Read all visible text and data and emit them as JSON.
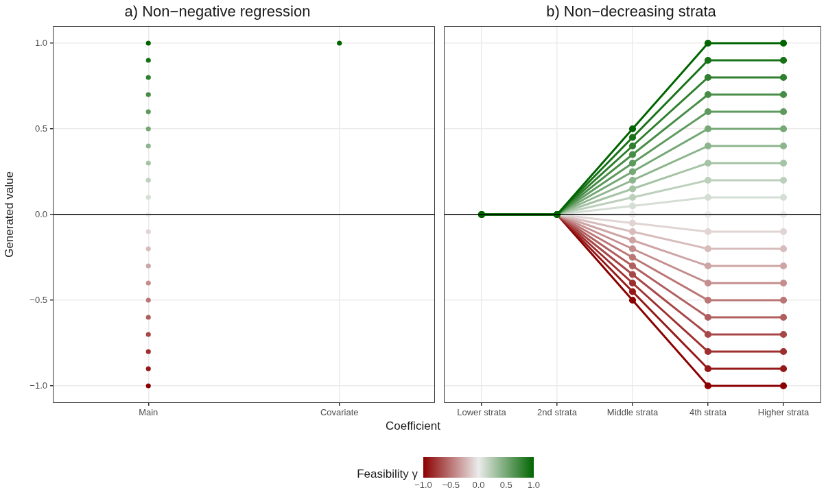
{
  "chart_data": [
    {
      "type": "scatter",
      "title": "a) Non−negative regression",
      "xlabel": "Coefficient",
      "ylabel": "Generated value",
      "categories": [
        "Main",
        "Covariate"
      ],
      "series": [
        {
          "x": [
            "Main",
            "Main",
            "Main",
            "Main",
            "Main",
            "Main",
            "Main",
            "Main",
            "Main",
            "Main",
            "Main",
            "Main",
            "Main",
            "Main",
            "Main",
            "Main",
            "Main",
            "Main",
            "Main",
            "Main",
            "Main",
            "Covariate"
          ],
          "values": [
            -1,
            -0.9,
            -0.8,
            -0.7,
            -0.6,
            -0.5,
            -0.4,
            -0.3,
            -0.2,
            -0.1,
            0,
            0.1,
            0.2,
            0.3,
            0.4,
            0.5,
            0.6,
            0.7,
            0.8,
            0.9,
            1,
            1
          ],
          "cvalues": [
            -1,
            -0.9,
            -0.8,
            -0.7,
            -0.6,
            -0.5,
            -0.4,
            -0.3,
            -0.2,
            -0.1,
            0,
            0.1,
            0.2,
            0.3,
            0.4,
            0.5,
            0.6,
            0.7,
            0.8,
            0.9,
            1,
            1
          ],
          "colors": [
            "#8b0000",
            "#951818",
            "#9e2f2f",
            "#a84747",
            "#b15e5e",
            "#bb7676",
            "#c58d8d",
            "#cea5a5",
            "#d8bcbc",
            "#e1d4d4",
            "#ebebeb",
            "#d4ded4",
            "#bcd0bc",
            "#a5c3a5",
            "#8db58d",
            "#76a876",
            "#5e9a5e",
            "#478d47",
            "#2f7f2f",
            "#187218",
            "#006400",
            "#006400"
          ]
        }
      ],
      "ylim": [
        -1.1,
        1.1
      ],
      "yticks": [
        {
          "value": -1,
          "label": "−1.0"
        },
        {
          "value": -0.5,
          "label": "−0.5"
        },
        {
          "value": 0,
          "label": "0.0"
        },
        {
          "value": 0.5,
          "label": "0.5"
        },
        {
          "value": 1,
          "label": "1.0"
        }
      ],
      "ref_lines": [
        {
          "axis": "y",
          "value": 0,
          "color": "#000000"
        }
      ],
      "grid": true,
      "legend": false,
      "marker": "circle",
      "clabel": "Feasibility γ",
      "clim": [
        -1,
        1
      ],
      "cticks": [
        {
          "value": -1,
          "label": "−1.0"
        },
        {
          "value": -0.5,
          "label": "−0.5"
        },
        {
          "value": 0,
          "label": "0.0"
        },
        {
          "value": 0.5,
          "label": "0.5"
        },
        {
          "value": 1,
          "label": "1.0"
        }
      ]
    },
    {
      "type": "line",
      "title": "b) Non−decreasing strata",
      "categories": [
        "Lower strata",
        "2nd strata",
        "Middle strata",
        "4th strata",
        "Higher strata"
      ],
      "series": [
        {
          "color": "#8b0000",
          "values": [
            0,
            0,
            -0.5,
            -1,
            -1
          ]
        },
        {
          "color": "#951818",
          "values": [
            0,
            0,
            -0.45,
            -0.9,
            -0.9
          ]
        },
        {
          "color": "#9e2f2f",
          "values": [
            0,
            0,
            -0.4,
            -0.8,
            -0.8
          ]
        },
        {
          "color": "#a84747",
          "values": [
            0,
            0,
            -0.35,
            -0.7,
            -0.7
          ]
        },
        {
          "color": "#b15e5e",
          "values": [
            0,
            0,
            -0.3,
            -0.6,
            -0.6
          ]
        },
        {
          "color": "#bb7676",
          "values": [
            0,
            0,
            -0.25,
            -0.5,
            -0.5
          ]
        },
        {
          "color": "#c58d8d",
          "values": [
            0,
            0,
            -0.2,
            -0.4,
            -0.4
          ]
        },
        {
          "color": "#cea5a5",
          "values": [
            0,
            0,
            -0.15,
            -0.3,
            -0.3
          ]
        },
        {
          "color": "#d8bcbc",
          "values": [
            0,
            0,
            -0.1,
            -0.2,
            -0.2
          ]
        },
        {
          "color": "#e1d4d4",
          "values": [
            0,
            0,
            -0.05,
            -0.1,
            -0.1
          ]
        },
        {
          "color": "#ebebeb",
          "values": [
            0,
            0,
            0,
            0,
            0
          ]
        },
        {
          "color": "#d4ded4",
          "values": [
            0,
            0,
            0.05,
            0.1,
            0.1
          ]
        },
        {
          "color": "#bcd0bc",
          "values": [
            0,
            0,
            0.1,
            0.2,
            0.2
          ]
        },
        {
          "color": "#a5c3a5",
          "values": [
            0,
            0,
            0.15,
            0.3,
            0.3
          ]
        },
        {
          "color": "#8db58d",
          "values": [
            0,
            0,
            0.2,
            0.4,
            0.4
          ]
        },
        {
          "color": "#76a876",
          "values": [
            0,
            0,
            0.25,
            0.5,
            0.5
          ]
        },
        {
          "color": "#5e9a5e",
          "values": [
            0,
            0,
            0.3,
            0.6,
            0.6
          ]
        },
        {
          "color": "#478d47",
          "values": [
            0,
            0,
            0.35,
            0.7,
            0.7
          ]
        },
        {
          "color": "#2f7f2f",
          "values": [
            0,
            0,
            0.4,
            0.8,
            0.8
          ]
        },
        {
          "color": "#187218",
          "values": [
            0,
            0,
            0.45,
            0.9,
            0.9
          ]
        },
        {
          "color": "#006400",
          "values": [
            0,
            0,
            0.5,
            1,
            1
          ]
        }
      ],
      "ylim": [
        -1.1,
        1.1
      ],
      "yticks": [
        -1,
        -0.5,
        0,
        0.5,
        1
      ],
      "tick_labels": "x",
      "ref_lines": [
        {
          "axis": "y",
          "value": 0,
          "color": "#000000"
        }
      ],
      "grid": true,
      "legend": false,
      "marker": "circle",
      "line_style": "solid"
    }
  ]
}
